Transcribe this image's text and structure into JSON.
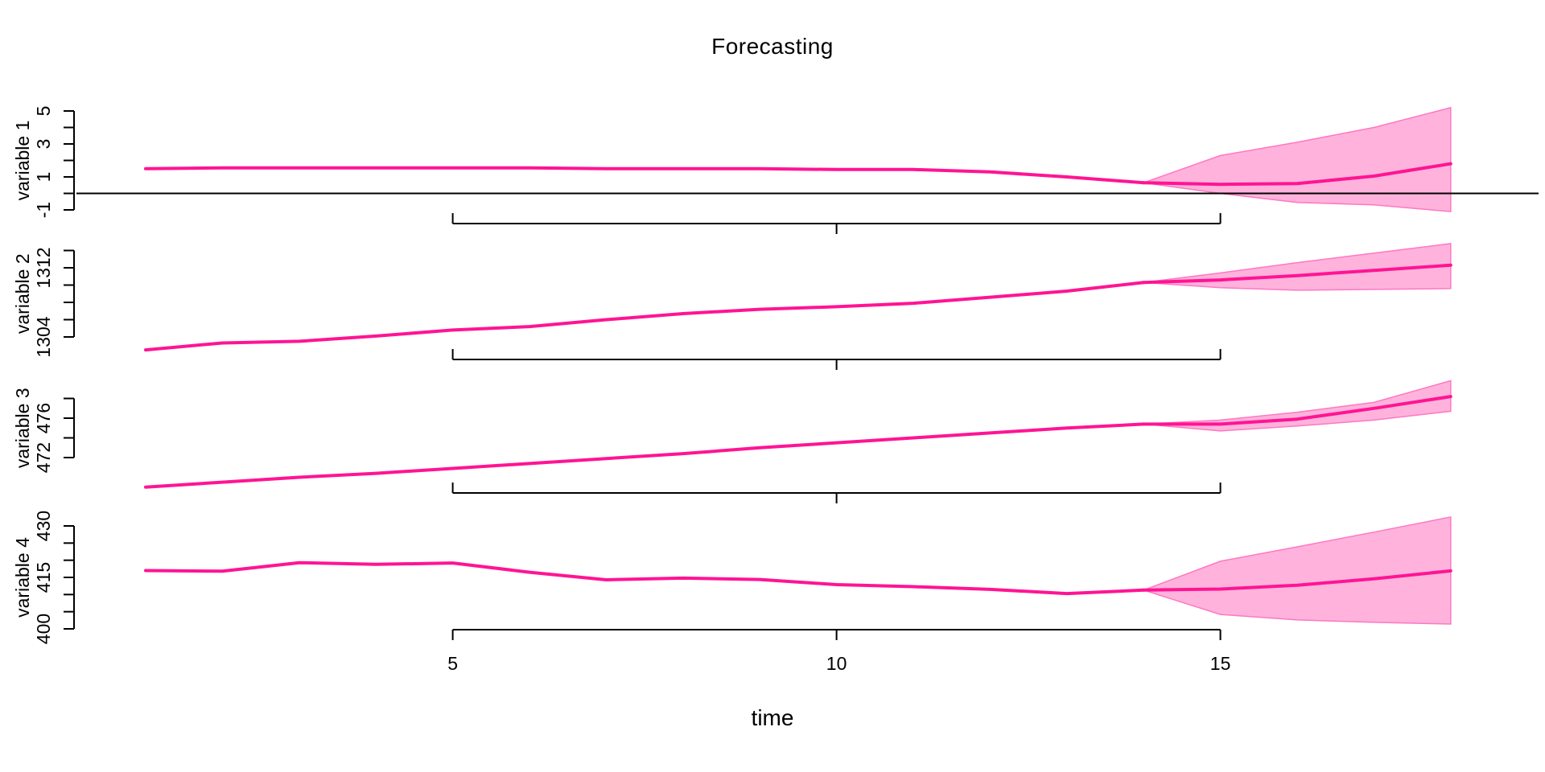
{
  "chart_data": {
    "type": "line",
    "title": "Forecasting",
    "xlabel": "time",
    "x_range": [
      1,
      18
    ],
    "x_ticks": [
      5,
      10,
      15
    ],
    "observed_x": [
      1,
      2,
      3,
      4,
      5,
      6,
      7,
      8,
      9,
      10,
      11,
      12,
      13,
      14
    ],
    "forecast_x": [
      14,
      15,
      16,
      17,
      18
    ],
    "forecast_start": 14,
    "grid": "off",
    "legend": "none",
    "colors": {
      "series_line": "#FF1493",
      "interval_fill": "#FFB3DC",
      "interval_edge": "#FF77C2",
      "axis": "#000000"
    },
    "panels": [
      {
        "ylabel": "variable 1",
        "ylim": [
          -1,
          5
        ],
        "y_ticks": [
          -1,
          0,
          1,
          2,
          3,
          4,
          5
        ],
        "y_tick_labels": [
          -1,
          1,
          3,
          5
        ],
        "zero_line": true,
        "observed": [
          1.5,
          1.55,
          1.55,
          1.55,
          1.55,
          1.55,
          1.5,
          1.5,
          1.5,
          1.45,
          1.45,
          1.3,
          1.0,
          0.65
        ],
        "forecast_mean": [
          0.65,
          0.55,
          0.6,
          1.05,
          1.8
        ],
        "forecast_upper": [
          0.65,
          2.3,
          3.1,
          4.0,
          5.2
        ],
        "forecast_lower": [
          0.65,
          0.0,
          -0.55,
          -0.7,
          -1.1
        ]
      },
      {
        "ylabel": "variable 2",
        "ylim": [
          1304,
          1314
        ],
        "y_ticks": [
          1304,
          1306,
          1308,
          1310,
          1312,
          1314
        ],
        "y_tick_labels": [
          1304,
          1312
        ],
        "zero_line": false,
        "observed": [
          1302.5,
          1303.3,
          1303.5,
          1304.1,
          1304.8,
          1305.2,
          1306.0,
          1306.7,
          1307.2,
          1307.5,
          1307.9,
          1308.6,
          1309.3,
          1310.3
        ],
        "forecast_mean": [
          1310.3,
          1310.6,
          1311.1,
          1311.7,
          1312.3
        ],
        "forecast_upper": [
          1310.3,
          1311.4,
          1312.6,
          1313.7,
          1314.8
        ],
        "forecast_lower": [
          1310.3,
          1309.7,
          1309.4,
          1309.5,
          1309.6
        ]
      },
      {
        "ylabel": "variable 3",
        "ylim": [
          472,
          478
        ],
        "y_ticks": [
          472,
          474,
          476,
          478
        ],
        "y_tick_labels": [
          472,
          476
        ],
        "zero_line": false,
        "observed": [
          469.0,
          469.5,
          470.0,
          470.4,
          470.9,
          471.4,
          471.9,
          472.4,
          473.0,
          473.5,
          474.0,
          474.5,
          475.0,
          475.4
        ],
        "forecast_mean": [
          475.4,
          475.4,
          475.9,
          477.0,
          478.2
        ],
        "forecast_upper": [
          475.4,
          475.8,
          476.6,
          477.6,
          479.8
        ],
        "forecast_lower": [
          475.4,
          474.7,
          475.2,
          475.8,
          476.7
        ]
      },
      {
        "ylabel": "variable 4",
        "ylim": [
          400,
          430
        ],
        "y_ticks": [
          400,
          405,
          410,
          415,
          420,
          425,
          430
        ],
        "y_tick_labels": [
          400,
          415,
          430
        ],
        "zero_line": false,
        "observed": [
          417.0,
          416.8,
          419.3,
          418.8,
          419.2,
          416.5,
          414.3,
          414.8,
          414.4,
          412.9,
          412.3,
          411.5,
          410.3,
          411.3
        ],
        "forecast_mean": [
          411.3,
          411.6,
          412.7,
          414.6,
          416.9
        ],
        "forecast_upper": [
          411.3,
          419.7,
          423.9,
          428.2,
          432.6
        ],
        "forecast_lower": [
          411.3,
          404.2,
          402.6,
          401.9,
          401.4
        ]
      }
    ]
  }
}
